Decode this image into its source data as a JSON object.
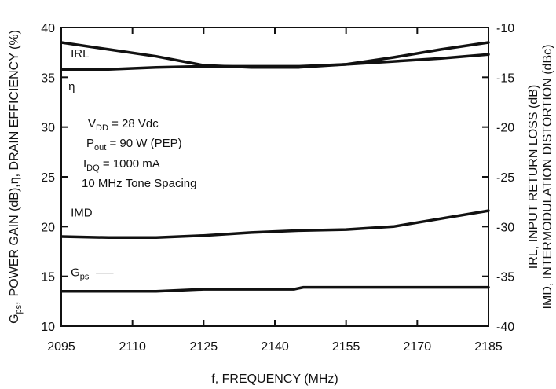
{
  "chart_data": {
    "type": "line",
    "xlabel": "f, FREQUENCY (MHz)",
    "ylabel_left": "POWER GAIN (dB),η, DRAIN EFFICIENCY (%)",
    "ylabel_left_prefix": "G",
    "ylabel_left_prefix_sub": "ps",
    "ylabel_left_prefix_suffix": ",",
    "ylabel_right_line1": "IRL, INPUT RETURN LOSS (dB)",
    "ylabel_right_line2": "IMD, INTERMODULATION DISTORTION (dBc)",
    "xlim": [
      2095,
      2185
    ],
    "ylim_left": [
      10,
      40
    ],
    "ylim_right": [
      -40,
      -10
    ],
    "x_ticks": [
      2095,
      2110,
      2125,
      2140,
      2155,
      2170,
      2185
    ],
    "y_ticks_left": [
      10,
      15,
      20,
      25,
      30,
      35,
      40
    ],
    "y_ticks_right": [
      -40,
      -35,
      -30,
      -25,
      -20,
      -15,
      -10
    ],
    "grid": false,
    "conditions": [
      {
        "main": "V",
        "sub": "DD",
        "rest": " = 28 Vdc"
      },
      {
        "main": "P",
        "sub": "out",
        "rest": " = 90 W (PEP)"
      },
      {
        "main": "I",
        "sub": "DQ",
        "rest": " = 1000 mA"
      },
      {
        "main": "10 MHz Tone Spacing",
        "sub": "",
        "rest": ""
      }
    ],
    "series": [
      {
        "name": "IRL",
        "label": {
          "main": "IRL",
          "sub": ""
        },
        "axis": "right",
        "x": [
          2095,
          2105,
          2115,
          2125,
          2135,
          2145,
          2155,
          2165,
          2175,
          2185
        ],
        "y": [
          -11.5,
          -12.2,
          -12.9,
          -13.8,
          -14.0,
          -14.0,
          -13.7,
          -13.0,
          -12.2,
          -11.5
        ]
      },
      {
        "name": "η",
        "label": {
          "main": "η",
          "sub": ""
        },
        "axis": "left",
        "x": [
          2095,
          2105,
          2115,
          2125,
          2135,
          2145,
          2155,
          2165,
          2175,
          2185
        ],
        "y": [
          35.8,
          35.8,
          36.0,
          36.1,
          36.1,
          36.1,
          36.3,
          36.6,
          36.9,
          37.3
        ]
      },
      {
        "name": "IMD",
        "label": {
          "main": "IMD",
          "sub": ""
        },
        "axis": "right",
        "x": [
          2095,
          2105,
          2115,
          2125,
          2135,
          2145,
          2155,
          2165,
          2175,
          2185
        ],
        "y": [
          -31.0,
          -31.1,
          -31.1,
          -30.9,
          -30.6,
          -30.4,
          -30.3,
          -30.0,
          -29.2,
          -28.4
        ]
      },
      {
        "name": "Gps",
        "label": {
          "main": "G",
          "sub": "ps"
        },
        "axis": "left",
        "x": [
          2095,
          2105,
          2115,
          2125,
          2135,
          2144,
          2146,
          2155,
          2165,
          2175,
          2185
        ],
        "y": [
          13.5,
          13.5,
          13.5,
          13.7,
          13.7,
          13.7,
          13.9,
          13.9,
          13.9,
          13.9,
          13.9
        ]
      }
    ]
  }
}
